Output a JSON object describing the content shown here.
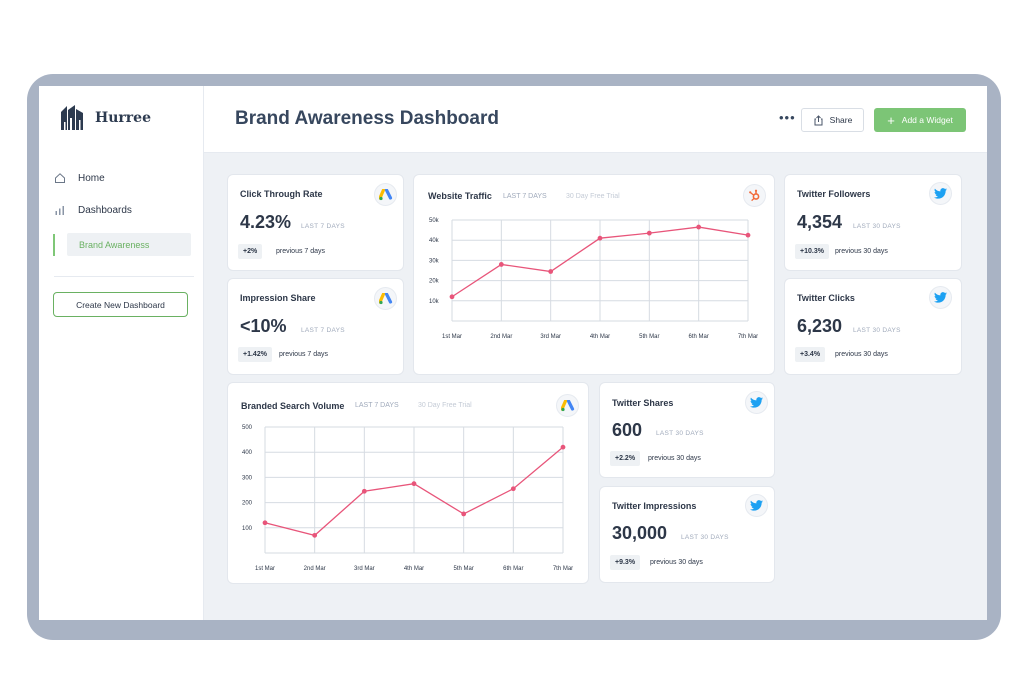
{
  "app": {
    "name": "Hurree"
  },
  "sidebar": {
    "items": [
      {
        "label": "Home",
        "icon": "home-icon"
      },
      {
        "label": "Dashboards",
        "icon": "bar-chart-icon"
      }
    ],
    "sub_item": "Brand Awareness",
    "create_button": "Create New Dashboard"
  },
  "header": {
    "title": "Brand Awareness Dashboard",
    "more": "•••",
    "share_label": "Share",
    "add_widget_label": "Add a Widget"
  },
  "colors": {
    "accent_green": "#7cc576",
    "line_pink": "#e8557a",
    "twitter_blue": "#1da1f2",
    "hubspot_orange": "#f26b3a"
  },
  "widgets": {
    "ctr": {
      "title": "Click Through Rate",
      "value": "4.23%",
      "period": "LAST 7 DAYS",
      "change": "+2%",
      "compare": "previous 7 days",
      "icon": "google-ads-icon"
    },
    "impression_share": {
      "title": "Impression Share",
      "value": "<10%",
      "period": "LAST 7 DAYS",
      "change": "+1.42%",
      "compare": "previous 7 days",
      "icon": "google-ads-icon"
    },
    "twitter_followers": {
      "title": "Twitter Followers",
      "value": "4,354",
      "period": "LAST 30 DAYS",
      "change": "+10.3%",
      "compare": "previous 30 days",
      "icon": "twitter-icon"
    },
    "twitter_clicks": {
      "title": "Twitter Clicks",
      "value": "6,230",
      "period": "LAST 30 DAYS",
      "change": "+3.4%",
      "compare": "previous 30 days",
      "icon": "twitter-icon"
    },
    "twitter_shares": {
      "title": "Twitter Shares",
      "value": "600",
      "period": "LAST 30 DAYS",
      "change": "+2.2%",
      "compare": "previous 30 days",
      "icon": "twitter-icon"
    },
    "twitter_impressions": {
      "title": "Twitter Impressions",
      "value": "30,000",
      "period": "LAST 30 DAYS",
      "change": "+9.3%",
      "compare": "previous 30 days",
      "icon": "twitter-icon"
    },
    "website_traffic": {
      "title": "Website Traffic",
      "period": "LAST 7 DAYS",
      "trial": "30 Day Free Trial",
      "icon": "hubspot-icon"
    },
    "branded_search": {
      "title": "Branded Search Volume",
      "period": "LAST 7 DAYS",
      "trial": "30 Day Free Trial",
      "icon": "google-ads-icon"
    }
  },
  "chart_data": [
    {
      "type": "line",
      "title": "Website Traffic",
      "categories": [
        "1st Mar",
        "2nd Mar",
        "3rd Mar",
        "4th Mar",
        "5th Mar",
        "6th Mar",
        "7th Mar"
      ],
      "y_ticks": [
        "10k",
        "20k",
        "30k",
        "40k",
        "50k"
      ],
      "ylim": [
        0,
        50000
      ],
      "series": [
        {
          "values": [
            12000,
            28000,
            24500,
            41000,
            43500,
            46500,
            42500
          ]
        }
      ],
      "grid": true
    },
    {
      "type": "line",
      "title": "Branded Search Volume",
      "categories": [
        "1st Mar",
        "2nd Mar",
        "3rd Mar",
        "4th Mar",
        "5th Mar",
        "6th Mar",
        "7th Mar"
      ],
      "y_ticks": [
        "100",
        "200",
        "300",
        "400",
        "500"
      ],
      "ylim": [
        0,
        500
      ],
      "series": [
        {
          "values": [
            120,
            70,
            245,
            275,
            155,
            255,
            420
          ]
        }
      ],
      "grid": true
    }
  ]
}
